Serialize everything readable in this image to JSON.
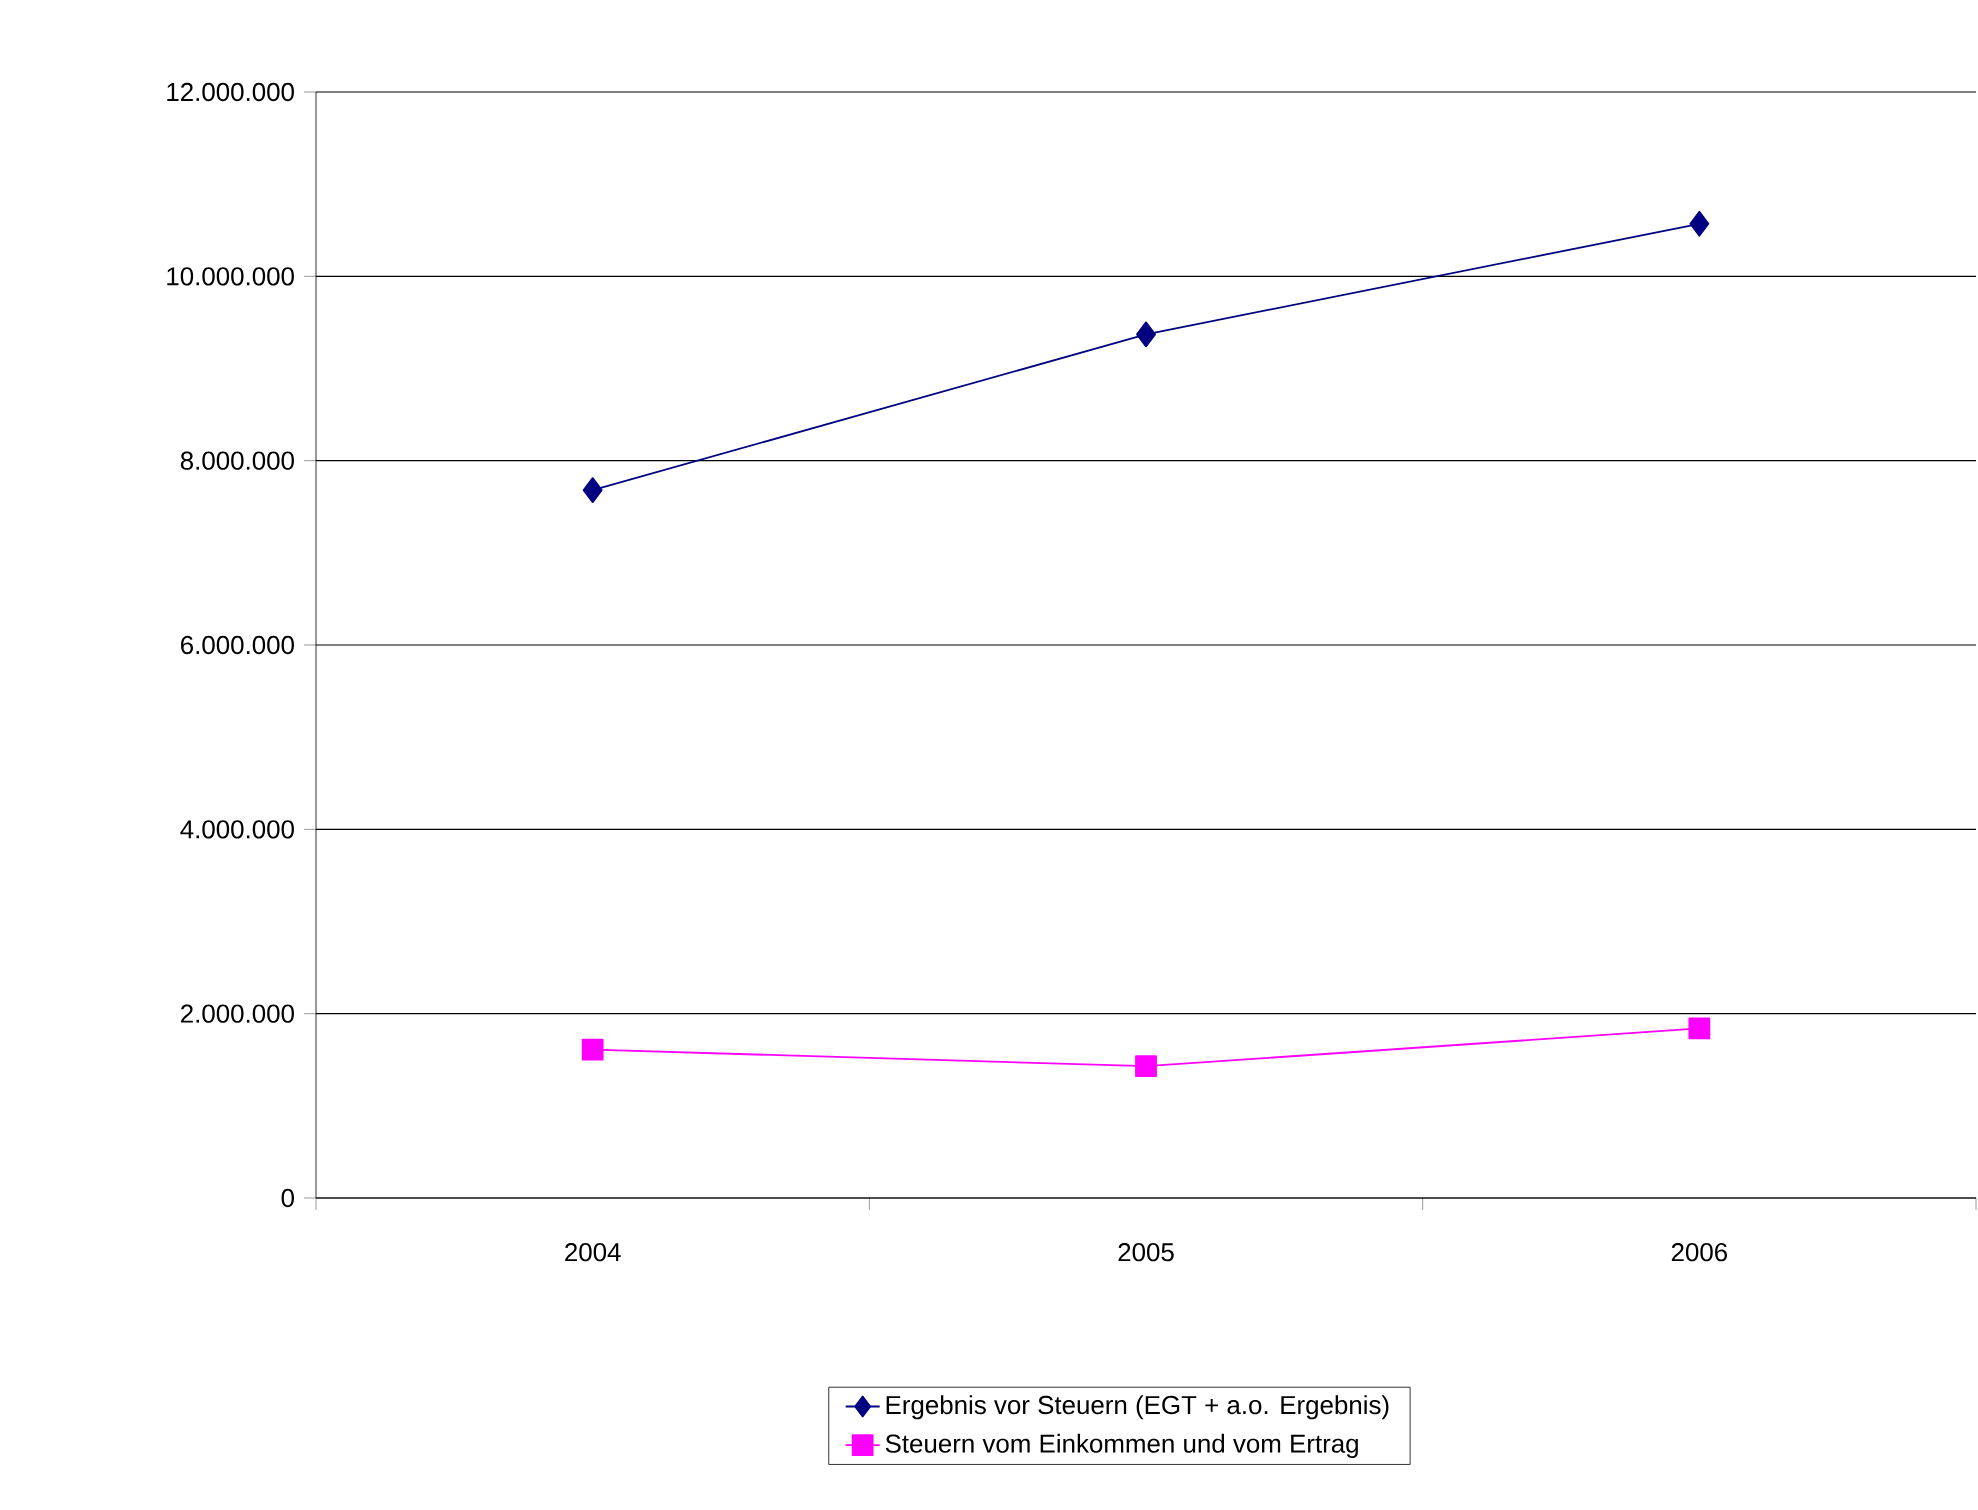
{
  "chart_data": {
    "type": "line",
    "categories": [
      "2004",
      "2005",
      "2006"
    ],
    "series": [
      {
        "name": "Ergebnis vor Steuern (EGT + a.o. Ergebnis)",
        "color": "#000080",
        "marker": "diamond",
        "values": [
          7680000,
          9370000,
          10570000
        ]
      },
      {
        "name": "Steuern vom Einkommen und vom Ertrag",
        "color": "#ff00ff",
        "marker": "square",
        "values": [
          1610000,
          1430000,
          1840000
        ]
      }
    ],
    "ylim": [
      0,
      12000000
    ],
    "yticks": [
      {
        "value": 0,
        "label": "0"
      },
      {
        "value": 2000000,
        "label": "2.000.000"
      },
      {
        "value": 4000000,
        "label": "4.000.000"
      },
      {
        "value": 6000000,
        "label": "6.000.000"
      },
      {
        "value": 8000000,
        "label": "8.000.000"
      },
      {
        "value": 10000000,
        "label": "10.000.000"
      },
      {
        "value": 12000000,
        "label": "12.000.000"
      }
    ],
    "grid": "y",
    "legend": "bottom",
    "line_style": "solid"
  }
}
